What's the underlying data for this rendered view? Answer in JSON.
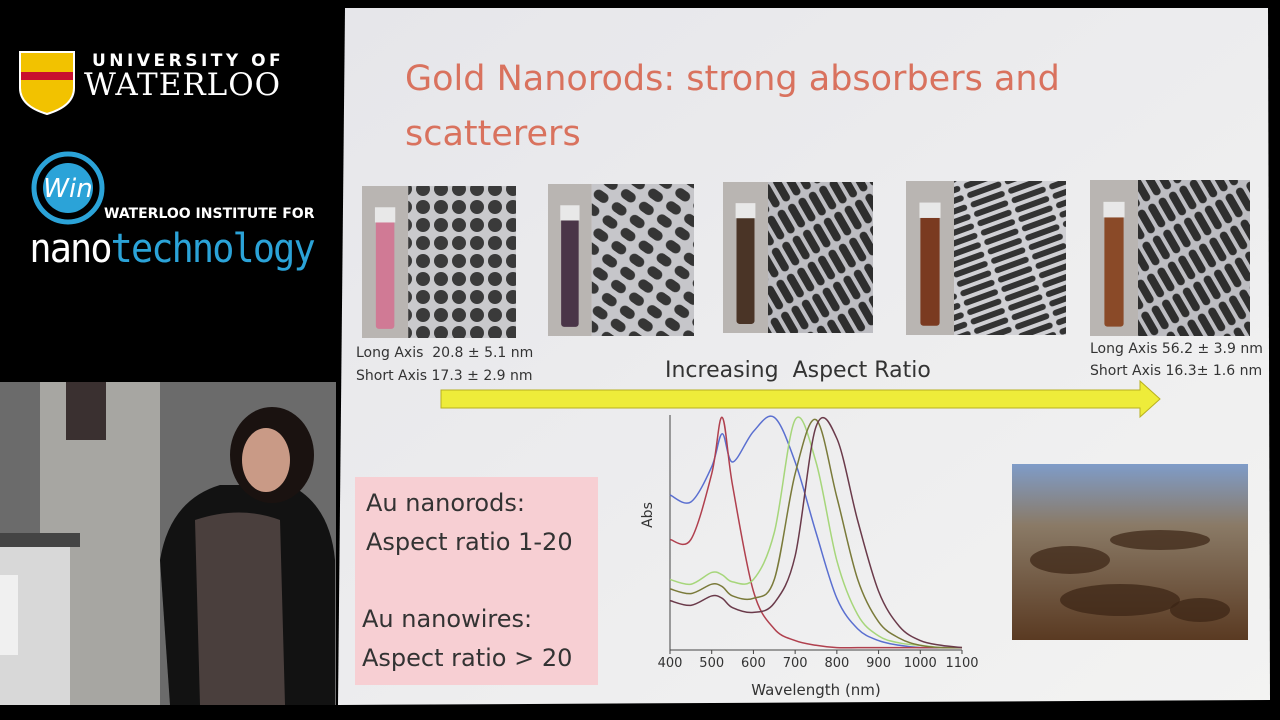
{
  "logos": {
    "university": {
      "line1": "UNIVERSITY OF",
      "line2": "WATERLOO"
    },
    "institute": {
      "line1": "WATERLOO INSTITUTE FOR",
      "nano": "nano",
      "technology": "technology"
    }
  },
  "slide": {
    "title": [
      "Gold Nanorods: strong absorbers and",
      "scatterers"
    ],
    "captions": {
      "left": [
        "Long Axis  20.8 ± 5.1 nm",
        "Short Axis 17.3 ± 2.9 nm"
      ],
      "right": [
        "Long Axis 56.2 ± 3.9 nm",
        "Short Axis 16.3± 1.6 nm"
      ]
    },
    "arrow_label": "Increasing  Aspect Ratio",
    "info_box": [
      "Au nanorods:",
      "Aspect ratio 1-20",
      "Au nanowires:",
      "Aspect ratio > 20"
    ],
    "spectrum": {
      "type": "line",
      "xlabel": "Wavelength (nm)",
      "ylabel": "Abs",
      "x": [
        400,
        450,
        500,
        525,
        550,
        600,
        650,
        700,
        750,
        800,
        850,
        900,
        950,
        1000,
        1050,
        1100
      ],
      "xlim": [
        400,
        1100
      ],
      "ylim": [
        0,
        1
      ],
      "xticks": [
        400,
        500,
        600,
        700,
        800,
        900,
        1000,
        1100
      ],
      "series": [
        {
          "color": "#5a6fd0",
          "values": [
            0.66,
            0.63,
            0.78,
            0.92,
            0.8,
            0.93,
            0.99,
            0.8,
            0.5,
            0.22,
            0.09,
            0.04,
            0.02,
            0.01,
            0.01,
            0.01
          ]
        },
        {
          "color": "#b0404e",
          "values": [
            0.47,
            0.47,
            0.75,
            0.99,
            0.7,
            0.25,
            0.09,
            0.04,
            0.02,
            0.01,
            0.01,
            0.01,
            0.01,
            0.01,
            0.01,
            0.01
          ]
        },
        {
          "color": "#a6d67a",
          "values": [
            0.3,
            0.28,
            0.33,
            0.32,
            0.29,
            0.3,
            0.5,
            0.98,
            0.8,
            0.38,
            0.15,
            0.06,
            0.03,
            0.02,
            0.01,
            0.01
          ]
        },
        {
          "color": "#7a7a3a",
          "values": [
            0.26,
            0.24,
            0.28,
            0.27,
            0.23,
            0.22,
            0.3,
            0.75,
            0.98,
            0.65,
            0.3,
            0.12,
            0.05,
            0.02,
            0.01,
            0.01
          ]
        },
        {
          "color": "#6a3a4a",
          "values": [
            0.21,
            0.19,
            0.23,
            0.22,
            0.18,
            0.16,
            0.2,
            0.4,
            0.95,
            0.9,
            0.55,
            0.25,
            0.1,
            0.04,
            0.02,
            0.01
          ]
        }
      ]
    }
  }
}
